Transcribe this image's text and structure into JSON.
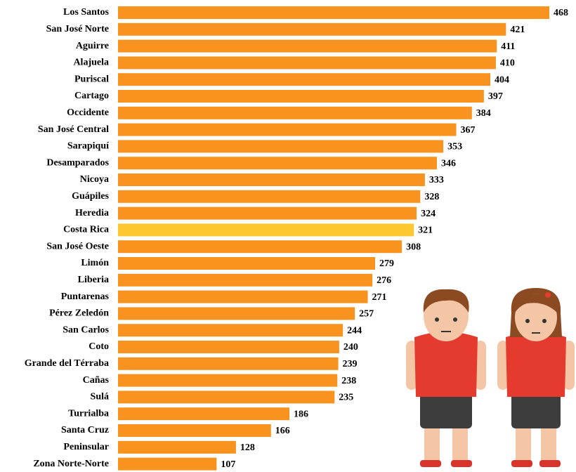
{
  "chart_data": {
    "type": "bar",
    "orientation": "horizontal",
    "categories": [
      "Los Santos",
      "San José Norte",
      "Aguirre",
      "Alajuela",
      "Puriscal",
      "Cartago",
      "Occidente",
      "San José Central",
      "Sarapiquí",
      "Desamparados",
      "Nicoya",
      "Guápiles",
      "Heredia",
      "Costa Rica",
      "San José Oeste",
      "Limón",
      "Liberia",
      "Puntarenas",
      "Pérez Zeledón",
      "San Carlos",
      "Coto",
      "Grande del Térraba",
      "Cañas",
      "Sulá",
      "Turrialba",
      "Santa Cruz",
      "Peninsular",
      "Zona Norte-Norte"
    ],
    "values": [
      468,
      421,
      411,
      410,
      404,
      397,
      384,
      367,
      353,
      346,
      333,
      328,
      324,
      321,
      308,
      279,
      276,
      271,
      257,
      244,
      240,
      239,
      238,
      235,
      186,
      166,
      128,
      107
    ],
    "colors": [
      "#f7931e",
      "#f7931e",
      "#f7931e",
      "#f7931e",
      "#f7931e",
      "#f7931e",
      "#f7931e",
      "#f7931e",
      "#f7931e",
      "#f7931e",
      "#f7931e",
      "#f7931e",
      "#f7931e",
      "#fdc82f",
      "#f7931e",
      "#f7931e",
      "#f7931e",
      "#f7931e",
      "#f7931e",
      "#f7931e",
      "#f7931e",
      "#f7931e",
      "#f7931e",
      "#f7931e",
      "#f7931e",
      "#f7931e",
      "#f7931e",
      "#f7931e"
    ]
  }
}
